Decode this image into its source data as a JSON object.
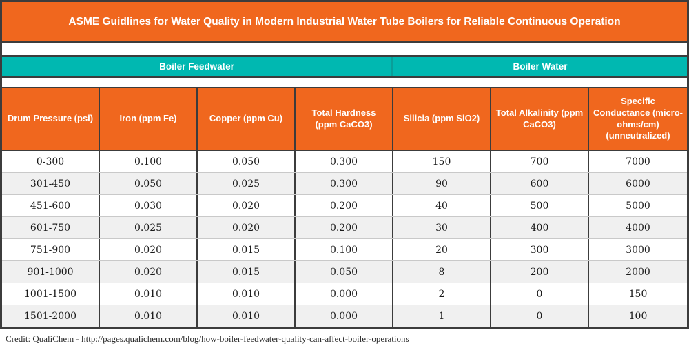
{
  "chart_data": {
    "type": "table",
    "title": "ASME Guidlines for Water Quality in Modern Industrial Water Tube Boilers for Reliable Continuous Operation",
    "column_groups": [
      {
        "label": "Boiler Feedwater",
        "columns_spanned": 4
      },
      {
        "label": "Boiler Water",
        "columns_spanned": 3
      }
    ],
    "columns": [
      "Drum Pressure (psi)",
      "Iron (ppm Fe)",
      "Copper (ppm Cu)",
      "Total Hardness (ppm CaCO3)",
      "Silicia (ppm SiO2)",
      "Total Alkalinity (ppm CaCO3)",
      "Specific Conductance (micro-ohms/cm) (unneutralized)"
    ],
    "rows": [
      [
        "0-300",
        "0.100",
        "0.050",
        "0.300",
        "150",
        "700",
        "7000"
      ],
      [
        "301-450",
        "0.050",
        "0.025",
        "0.300",
        "90",
        "600",
        "6000"
      ],
      [
        "451-600",
        "0.030",
        "0.020",
        "0.200",
        "40",
        "500",
        "5000"
      ],
      [
        "601-750",
        "0.025",
        "0.020",
        "0.200",
        "30",
        "400",
        "4000"
      ],
      [
        "751-900",
        "0.020",
        "0.015",
        "0.100",
        "20",
        "300",
        "3000"
      ],
      [
        "901-1000",
        "0.020",
        "0.015",
        "0.050",
        "8",
        "200",
        "2000"
      ],
      [
        "1001-1500",
        "0.010",
        "0.010",
        "0.000",
        "2",
        "0",
        "150"
      ],
      [
        "1501-2000",
        "0.010",
        "0.010",
        "0.000",
        "1",
        "0",
        "100"
      ]
    ],
    "layout": {
      "grid": "on",
      "row_striping": "alternate"
    }
  },
  "credit": "Credit: QualiChem - http://pages.qualichem.com/blog/how-boiler-feedwater-quality-can-affect-boiler-operations",
  "colors": {
    "accent_orange": "#f0671e",
    "accent_teal": "#00b8b1",
    "border_dark": "#3c3c3c",
    "row_alt": "#f0f0f0"
  }
}
